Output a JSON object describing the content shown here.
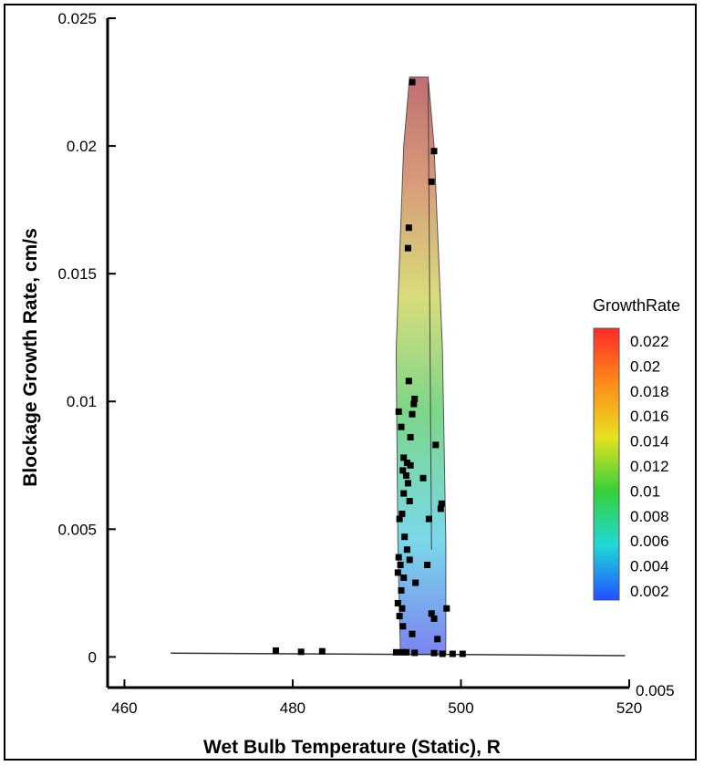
{
  "chart_data": {
    "type": "scatter",
    "xlabel": "Wet Bulb Temperature (Static), R",
    "ylabel": "Blockage Growth Rate, cm/s",
    "xlim": [
      458,
      520
    ],
    "ylim": [
      -0.0012,
      0.025
    ],
    "x_ticks": [
      "460",
      "480",
      "500",
      "520"
    ],
    "y_ticks": [
      "0",
      "0.005",
      "0.01",
      "0.015",
      "0.02",
      "0.025"
    ],
    "extra_axis_label": "0.005",
    "colorbar": {
      "title": "GrowthRate",
      "levels": [
        "0.022",
        "0.02",
        "0.018",
        "0.016",
        "0.014",
        "0.012",
        "0.01",
        "0.008",
        "0.006",
        "0.004",
        "0.002"
      ],
      "colors": [
        "#ff2a2a",
        "#ff8a1a",
        "#e8e020",
        "#34d03a",
        "#20d8d8",
        "#2050ff"
      ]
    },
    "envelope": [
      [
        492.8,
        0.0001
      ],
      [
        492.5,
        0.0045
      ],
      [
        492.3,
        0.012
      ],
      [
        493.2,
        0.02
      ],
      [
        493.9,
        0.0227
      ],
      [
        496.1,
        0.0227
      ],
      [
        496.8,
        0.02
      ],
      [
        497.8,
        0.012
      ],
      [
        498.2,
        0.0045
      ],
      [
        498.2,
        0.0001
      ]
    ],
    "baseline": [
      [
        465.5,
        0.00015
      ],
      [
        493,
        0.0001
      ],
      [
        498,
        0.0001
      ],
      [
        519.5,
        5e-05
      ]
    ],
    "points": [
      [
        478,
        0.00025
      ],
      [
        481,
        0.0002
      ],
      [
        483.5,
        0.00022
      ],
      [
        492.3,
        0.00018
      ],
      [
        493,
        0.00018
      ],
      [
        493.5,
        0.00018
      ],
      [
        494.5,
        0.00016
      ],
      [
        496.8,
        0.00015
      ],
      [
        497.8,
        0.00012
      ],
      [
        499,
        0.00012
      ],
      [
        500.2,
        0.00012
      ],
      [
        494.2,
        0.0225
      ],
      [
        496.8,
        0.0198
      ],
      [
        496.5,
        0.0186
      ],
      [
        493.8,
        0.0168
      ],
      [
        493.7,
        0.016
      ],
      [
        493.8,
        0.0108
      ],
      [
        494.5,
        0.0101
      ],
      [
        494.4,
        0.0099
      ],
      [
        492.6,
        0.0096
      ],
      [
        494.2,
        0.0095
      ],
      [
        492.9,
        0.009
      ],
      [
        494.0,
        0.0086
      ],
      [
        497.0,
        0.0083
      ],
      [
        493.2,
        0.0078
      ],
      [
        493.6,
        0.0076
      ],
      [
        494.0,
        0.0075
      ],
      [
        493.1,
        0.0073
      ],
      [
        493.5,
        0.0071
      ],
      [
        495.5,
        0.007
      ],
      [
        493.7,
        0.0068
      ],
      [
        493.2,
        0.0064
      ],
      [
        493.9,
        0.0061
      ],
      [
        493.0,
        0.0056
      ],
      [
        497.7,
        0.006
      ],
      [
        497.6,
        0.0058
      ],
      [
        492.7,
        0.0054
      ],
      [
        496.2,
        0.0054
      ],
      [
        493.3,
        0.0047
      ],
      [
        493.6,
        0.0042
      ],
      [
        492.6,
        0.0039
      ],
      [
        492.8,
        0.0036
      ],
      [
        493.9,
        0.0038
      ],
      [
        492.5,
        0.0033
      ],
      [
        493.2,
        0.0031
      ],
      [
        496.0,
        0.0036
      ],
      [
        492.9,
        0.0026
      ],
      [
        494.6,
        0.0029
      ],
      [
        492.5,
        0.0021
      ],
      [
        493.0,
        0.0019
      ],
      [
        492.7,
        0.0016
      ],
      [
        498.3,
        0.0019
      ],
      [
        496.5,
        0.0017
      ],
      [
        496.8,
        0.0015
      ],
      [
        493.1,
        0.0012
      ],
      [
        494.2,
        0.0009
      ],
      [
        497.2,
        0.0007
      ]
    ]
  }
}
